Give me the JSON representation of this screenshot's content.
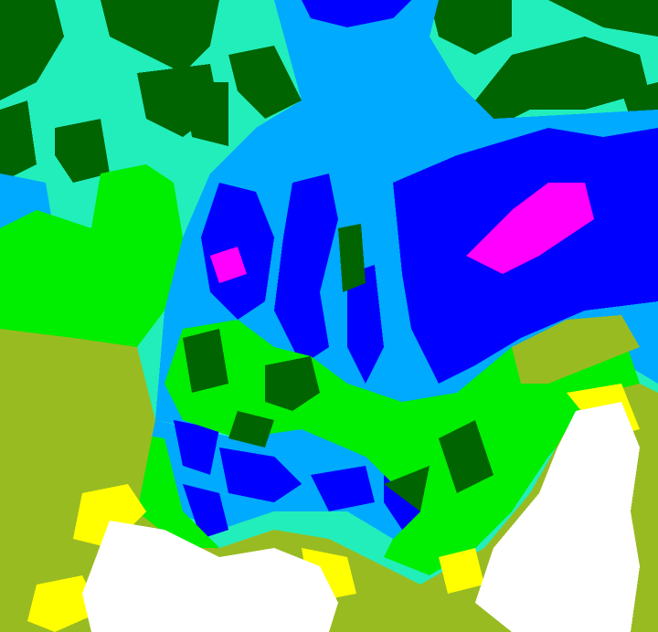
{
  "image": {
    "kind": "false-color satellite imagery",
    "palette": {
      "dark_green": "#006400",
      "aquamarine": "#22eebb",
      "light_blue": "#00aaff",
      "blue": "#0000ff",
      "magenta": "#ff00ff",
      "green": "#00ee00",
      "olive": "#99bb22",
      "yellow": "#ffff00",
      "white": "#ffffff"
    }
  }
}
